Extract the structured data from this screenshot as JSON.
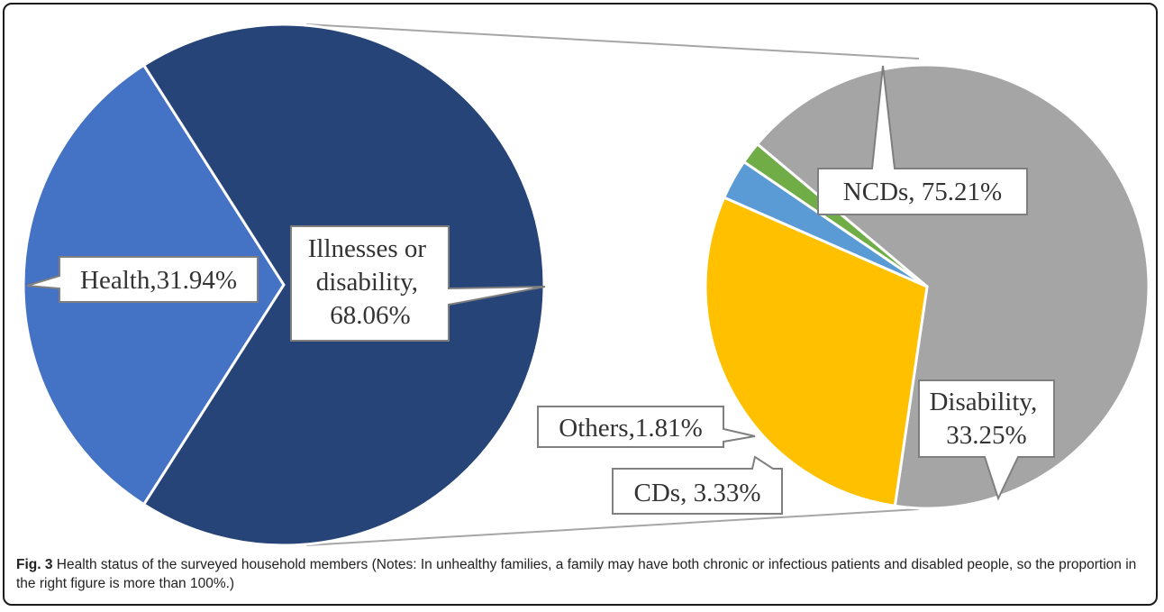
{
  "chart_data": [
    {
      "type": "pie",
      "slices": [
        {
          "name": "Health",
          "value": 31.94,
          "label": "Health,31.94%",
          "color": "#4472c4"
        },
        {
          "name": "Illnesses or disability",
          "value": 68.06,
          "label_lines": [
            "Illnesses or",
            "disability,",
            "68.06%"
          ],
          "color": "#264478"
        }
      ]
    },
    {
      "type": "pie",
      "slices": [
        {
          "name": "NCDs",
          "value": 75.21,
          "label": "NCDs, 75.21%",
          "color": "#a5a5a5"
        },
        {
          "name": "Disability",
          "value": 33.25,
          "label_lines": [
            "Disability,",
            "33.25%"
          ],
          "color": "#ffc000"
        },
        {
          "name": "CDs",
          "value": 3.33,
          "label": "CDs, 3.33%",
          "color": "#5b9bd5"
        },
        {
          "name": "Others",
          "value": 1.81,
          "label": "Others,1.81%",
          "color": "#70ad47"
        }
      ]
    }
  ],
  "caption": {
    "label": "Fig. 3",
    "text": " Health status of the surveyed household members (Notes: In unhealthy families, a family may have both chronic or infectious patients and disabled people, so the proportion in the right figure is more than 100%.)"
  }
}
